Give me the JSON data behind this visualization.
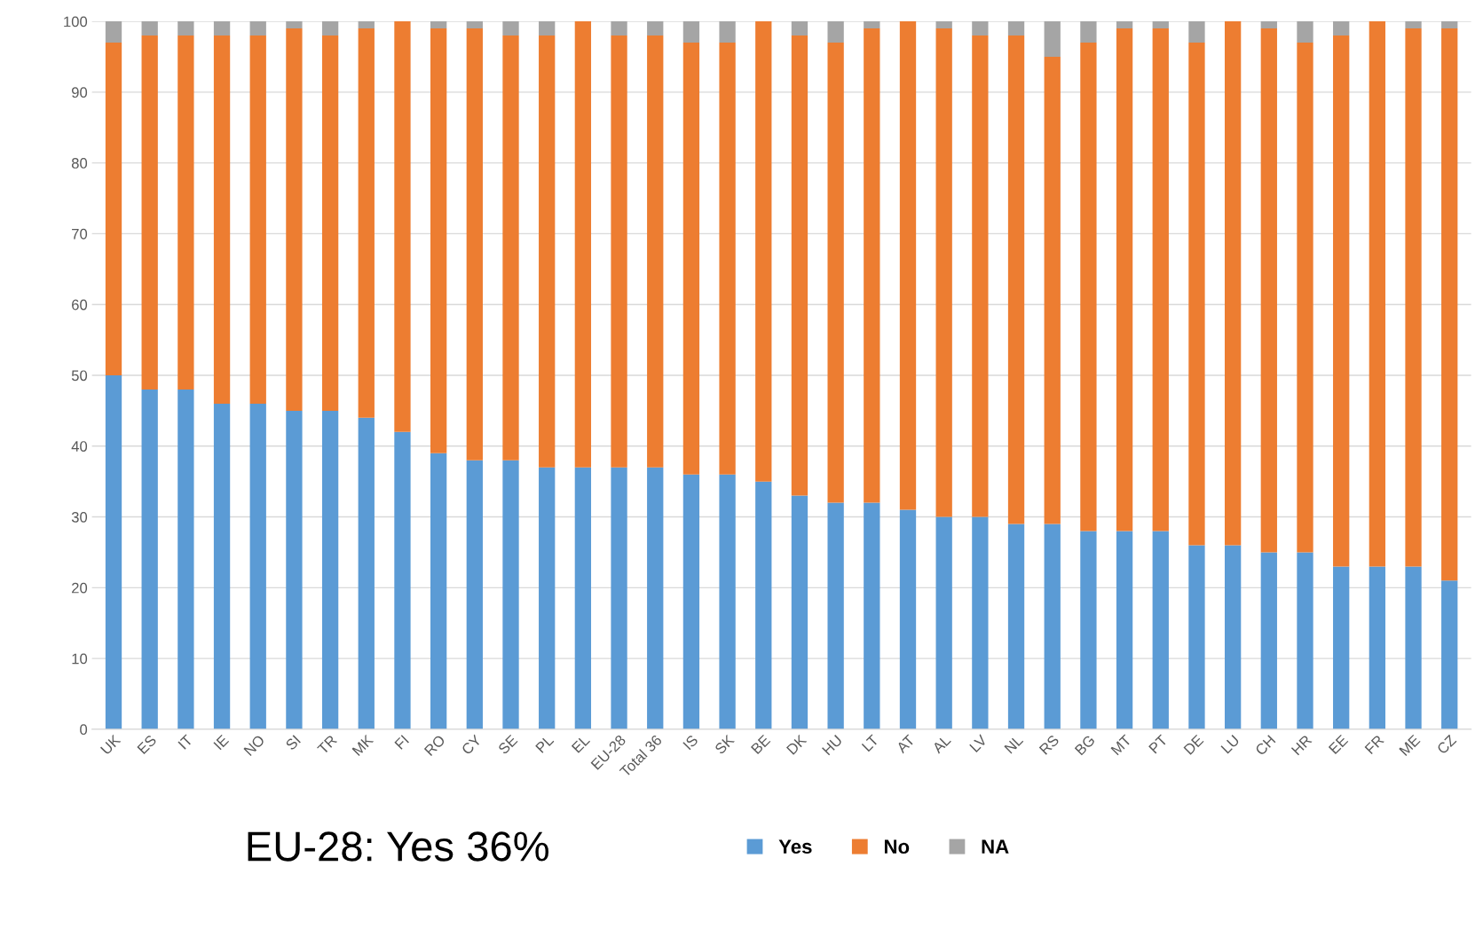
{
  "chart_data": {
    "type": "bar",
    "stacked": true,
    "categories": [
      "UK",
      "ES",
      "IT",
      "IE",
      "NO",
      "SI",
      "TR",
      "MK",
      "FI",
      "RO",
      "CY",
      "SE",
      "PL",
      "EL",
      "EU-28",
      "Total 36",
      "IS",
      "SK",
      "BE",
      "DK",
      "HU",
      "LT",
      "AT",
      "AL",
      "LV",
      "NL",
      "RS",
      "BG",
      "MT",
      "PT",
      "DE",
      "LU",
      "CH",
      "HR",
      "EE",
      "FR",
      "ME",
      "CZ"
    ],
    "series": [
      {
        "name": "Yes",
        "color": "#5b9bd5",
        "values": [
          50,
          48,
          48,
          46,
          46,
          45,
          45,
          44,
          42,
          39,
          38,
          38,
          37,
          37,
          37,
          37,
          36,
          36,
          35,
          33,
          32,
          32,
          31,
          30,
          30,
          29,
          29,
          28,
          28,
          28,
          26,
          26,
          25,
          25,
          23,
          23,
          23,
          21
        ]
      },
      {
        "name": "No",
        "color": "#ed7d31",
        "values": [
          47,
          50,
          50,
          52,
          52,
          54,
          53,
          55,
          58,
          60,
          61,
          60,
          61,
          63,
          61,
          61,
          61,
          61,
          65,
          65,
          65,
          67,
          69,
          69,
          68,
          69,
          66,
          69,
          71,
          71,
          71,
          74,
          74,
          72,
          75,
          77,
          76,
          78
        ]
      },
      {
        "name": "NA",
        "color": "#a5a5a5",
        "values": [
          3,
          2,
          2,
          2,
          2,
          1,
          2,
          1,
          0,
          1,
          1,
          2,
          2,
          0,
          2,
          2,
          3,
          3,
          0,
          2,
          3,
          1,
          0,
          1,
          2,
          2,
          5,
          3,
          1,
          1,
          3,
          0,
          1,
          3,
          2,
          0,
          1,
          1
        ]
      }
    ],
    "ylim": [
      0,
      100
    ],
    "yticks": [
      0,
      10,
      20,
      30,
      40,
      50,
      60,
      70,
      80,
      90,
      100
    ],
    "grid": "y",
    "legend": "bottom",
    "annotations": [
      "EU-28: Yes 36%"
    ]
  }
}
